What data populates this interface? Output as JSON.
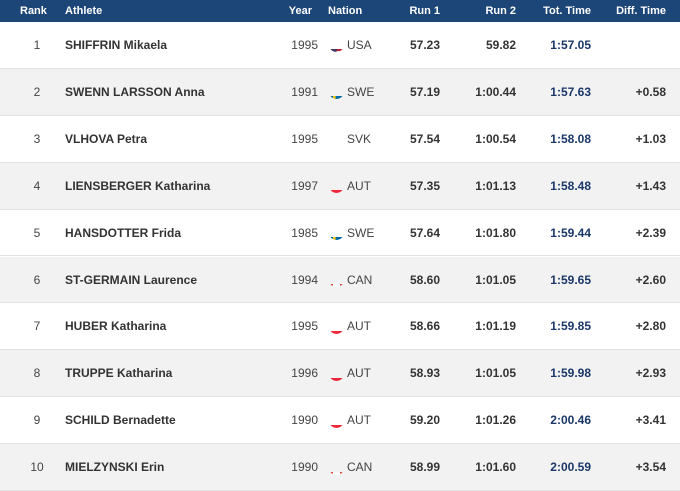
{
  "table": {
    "header": [
      "Rank",
      "Athlete",
      "Year",
      "Nation",
      "Run 1",
      "Run 2",
      "Tot. Time",
      "Diff. Time"
    ],
    "rows": [
      [
        "1",
        "SHIFFRIN Mikaela",
        "1995",
        "USA",
        "57.23",
        "59.82",
        "1:57.05"
      ],
      [
        "2",
        "SWENN LARSSON Anna",
        "1991",
        "SWE",
        "57.19",
        "1:00.44",
        "1:57.63",
        "+0.58"
      ],
      [
        "3",
        "VLHOVA Petra",
        "1995",
        "SVK",
        "57.54",
        "1:00.54",
        "1:58.08",
        "+1.03"
      ],
      [
        "4",
        "LIENSBERGER Katharina",
        "1997",
        "AUT",
        "57.35",
        "1:01.13",
        "1:58.48",
        "+1.43"
      ],
      [
        "5",
        "HANSDOTTER Frida",
        "1985",
        "SWE",
        "57.64",
        "1:01.80",
        "1:59.44",
        "+2.39"
      ],
      [
        "6",
        "ST-GERMAIN Laurence",
        "1994",
        "CAN",
        "58.60",
        "1:01.05",
        "1:59.65",
        "+2.60"
      ],
      [
        "7",
        "HUBER Katharina",
        "1995",
        "AUT",
        "58.66",
        "1:01.19",
        "1:59.85",
        "+2.80"
      ],
      [
        "8",
        "TRUPPE Katharina",
        "1996",
        "AUT",
        "58.93",
        "1:01.05",
        "1:59.98",
        "+2.93"
      ],
      [
        "9",
        "SCHILD Bernadette",
        "1990",
        "AUT",
        "59.20",
        "1:01.26",
        "2:00.46",
        "+3.41"
      ],
      [
        "10",
        "MIELZYNSKI Erin",
        "1990",
        "CAN",
        "58.99",
        "1:01.60",
        "2:00.59",
        "+3.54"
      ]
    ]
  }
}
